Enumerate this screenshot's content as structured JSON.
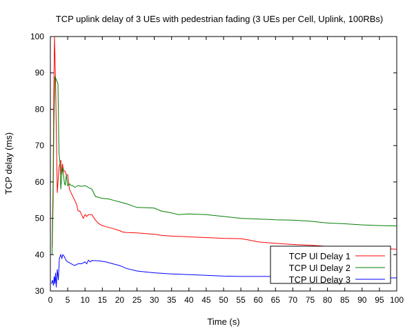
{
  "chart_data": {
    "type": "line",
    "title": "TCP uplink delay of 3 UEs with pedestrian fading (3 UEs per Cell, Uplink, 100RBs)",
    "xlabel": "Time (s)",
    "ylabel": "TCP delay (ms)",
    "xlim": [
      0,
      100
    ],
    "ylim": [
      30,
      100
    ],
    "xticks": [
      0,
      5,
      10,
      15,
      20,
      25,
      30,
      35,
      40,
      45,
      50,
      55,
      60,
      65,
      70,
      75,
      80,
      85,
      90,
      95,
      100
    ],
    "yticks": [
      30,
      40,
      50,
      60,
      70,
      80,
      90,
      100
    ],
    "grid": false,
    "legend_position": "bottom-right",
    "series": [
      {
        "name": "TCP Ul Delay 1",
        "color": "#ff0000",
        "x": [
          0.5,
          0.8,
          1.0,
          1.2,
          1.5,
          2.0,
          2.5,
          3.0,
          3.2,
          3.5,
          3.8,
          4.2,
          4.6,
          5.0,
          5.5,
          6.0,
          6.5,
          7.0,
          7.5,
          8.0,
          8.5,
          9.0,
          9.5,
          10.0,
          10.5,
          11.0,
          12.0,
          13.0,
          14.0,
          15.0,
          16.0,
          18.0,
          20.0,
          21.0,
          22.0,
          25.0,
          30.0,
          32.0,
          35.0,
          38.0,
          40.0,
          45.0,
          50.0,
          55.0,
          57.0,
          60.0,
          65.0,
          70.0,
          75.0,
          80.0,
          85.0,
          90.0,
          95.0,
          100.0
        ],
        "values": [
          42,
          60,
          85,
          100,
          88,
          57,
          64,
          66,
          62,
          65,
          63,
          63,
          62,
          62,
          58,
          57,
          56,
          55,
          54,
          52,
          52,
          51,
          50,
          51,
          50.5,
          51,
          51,
          49.5,
          48.5,
          48,
          47.7,
          47.2,
          46.6,
          46.2,
          46.1,
          46,
          45.6,
          45.3,
          45.1,
          45,
          44.9,
          44.7,
          44.5,
          44.4,
          44.1,
          43.5,
          43.1,
          42.8,
          42.6,
          42.3,
          42.1,
          41.9,
          41.7,
          41.5
        ]
      },
      {
        "name": "TCP Ul Delay 2",
        "color": "#008000",
        "x": [
          0.5,
          0.8,
          1.0,
          1.3,
          1.8,
          2.2,
          2.5,
          2.8,
          3.0,
          3.3,
          3.6,
          4.0,
          4.3,
          4.6,
          5.0,
          5.5,
          6.0,
          6.5,
          7.0,
          8.0,
          9.0,
          10.0,
          11.0,
          12.0,
          13.0,
          15.0,
          17.0,
          18.0,
          20.0,
          22.0,
          25.0,
          28.0,
          30.0,
          32.0,
          35.0,
          37.0,
          40.0,
          45.0,
          50.0,
          55.0,
          60.0,
          65.0,
          70.0,
          75.0,
          80.0,
          85.0,
          90.0,
          95.0,
          100.0
        ],
        "values": [
          40,
          55,
          75,
          89,
          88,
          87,
          68,
          65,
          58,
          62,
          64,
          60,
          59,
          62,
          59,
          59.5,
          59,
          59,
          58.5,
          59,
          58.8,
          59,
          58.5,
          58,
          56,
          55.5,
          55.3,
          55,
          54.5,
          54,
          53,
          52.9,
          52.8,
          52,
          51.5,
          51,
          51.2,
          51,
          50.5,
          50,
          49.8,
          49.6,
          49.5,
          49.2,
          48.7,
          48.5,
          48.2,
          48,
          47.9
        ]
      },
      {
        "name": "TCP Ul Delay 3",
        "color": "#0000ff",
        "x": [
          0.3,
          0.6,
          0.9,
          1.1,
          1.3,
          1.5,
          1.7,
          2.0,
          2.3,
          2.6,
          3.0,
          3.3,
          3.6,
          4.0,
          4.5,
          5.0,
          5.5,
          6.0,
          7.0,
          8.0,
          9.0,
          10.0,
          10.5,
          11.0,
          11.5,
          12.0,
          14.0,
          16.0,
          18.0,
          20.0,
          22.0,
          25.0,
          28.0,
          30.0,
          35.0,
          40.0,
          45.0,
          50.0,
          55.0,
          60.0,
          65.0,
          70.0,
          75.0,
          80.0,
          85.0,
          90.0,
          95.0,
          100.0
        ],
        "values": [
          32,
          33,
          31.5,
          34,
          32,
          35,
          31,
          36,
          33,
          39,
          40,
          39,
          40,
          39.5,
          38.5,
          38,
          37.8,
          37.5,
          37,
          37.5,
          37.5,
          38,
          37.5,
          38.5,
          38,
          38.4,
          38.3,
          38,
          37.5,
          37,
          36.2,
          35.5,
          35.2,
          35,
          34.7,
          34.5,
          34.3,
          34.1,
          34,
          34,
          34,
          33.9,
          33.8,
          33.8,
          33.7,
          33.7,
          33.6,
          33.6
        ]
      }
    ]
  }
}
